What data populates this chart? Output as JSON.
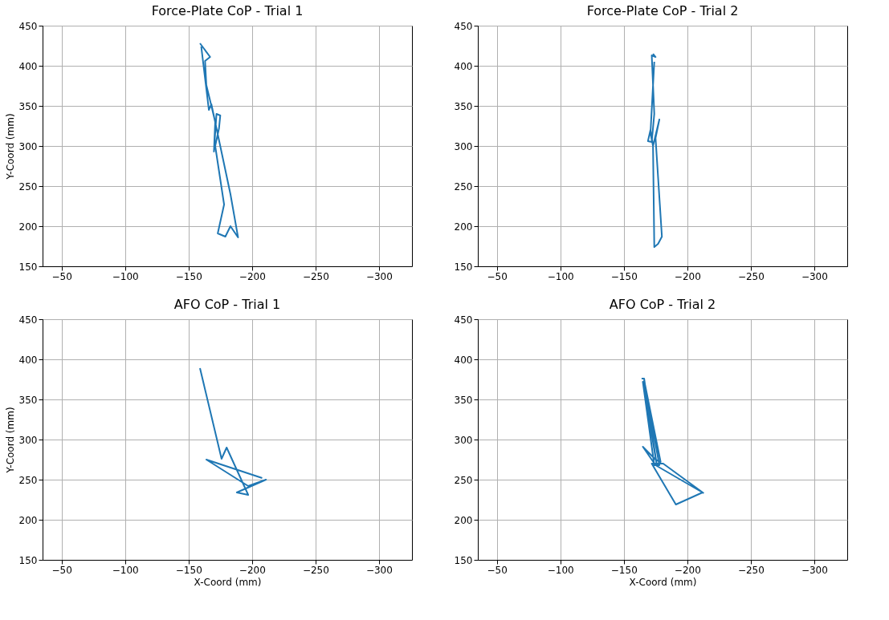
{
  "chart_data": [
    {
      "type": "line",
      "title": "Force-Plate CoP - Trial 1",
      "ylabel": "Y-Coord (mm)",
      "x": [
        -159,
        -167,
        -163,
        -164,
        -168,
        -171,
        -170,
        -172,
        -175,
        -174,
        -171,
        -178,
        -173,
        -179,
        -183,
        -189,
        -183,
        -168,
        -166,
        -160
      ],
      "values": [
        428,
        411,
        406,
        376,
        350,
        330,
        293,
        340,
        338,
        322,
        300,
        227,
        191,
        187,
        200,
        186,
        240,
        352,
        345,
        424
      ],
      "color": "#1f77b4",
      "xlim": [
        -35,
        -326
      ],
      "ylim": [
        150,
        450
      ],
      "xticks": [
        -50,
        -100,
        -150,
        -200,
        -250,
        -300
      ],
      "yticks": [
        150,
        200,
        250,
        300,
        350,
        400,
        450
      ],
      "grid": true
    },
    {
      "type": "line",
      "title": "Force-Plate CoP - Trial 2",
      "x": [
        -173,
        -175,
        -172,
        -174,
        -172,
        -169,
        -171,
        -173,
        -178,
        -175,
        -180,
        -177,
        -174,
        -173,
        -171,
        -174
      ],
      "values": [
        415,
        411,
        413,
        340,
        305,
        306,
        320,
        300,
        333,
        310,
        187,
        178,
        174,
        300,
        316,
        405
      ],
      "color": "#1f77b4",
      "xlim": [
        -35,
        -326
      ],
      "ylim": [
        150,
        450
      ],
      "xticks": [
        -50,
        -100,
        -150,
        -200,
        -250,
        -300
      ],
      "yticks": [
        150,
        200,
        250,
        300,
        350,
        400,
        450
      ],
      "grid": true
    },
    {
      "type": "line",
      "title": "AFO CoP - Trial 1",
      "xlabel": "X-Coord (mm)",
      "ylabel": "Y-Coord (mm)",
      "x": [
        -159,
        -176,
        -180,
        -197,
        -188,
        -211,
        -197,
        -164,
        -208
      ],
      "values": [
        389,
        276,
        290,
        231,
        234,
        250,
        242,
        275,
        252
      ],
      "color": "#1f77b4",
      "xlim": [
        -35,
        -326
      ],
      "ylim": [
        150,
        450
      ],
      "xticks": [
        -50,
        -100,
        -150,
        -200,
        -250,
        -300
      ],
      "yticks": [
        150,
        200,
        250,
        300,
        350,
        400,
        450
      ],
      "grid": true
    },
    {
      "type": "line",
      "title": "AFO CoP - Trial 2",
      "xlabel": "X-Coord (mm)",
      "x": [
        -164,
        -166,
        -176,
        -165,
        -174,
        -178,
        -166,
        -179,
        -175,
        -165,
        -175,
        -212,
        -191,
        -172,
        -181,
        -213
      ],
      "values": [
        376,
        376,
        268,
        372,
        268,
        268,
        374,
        272,
        275,
        291,
        268,
        234,
        219,
        270,
        270,
        233
      ],
      "color": "#1f77b4",
      "xlim": [
        -35,
        -326
      ],
      "ylim": [
        150,
        450
      ],
      "xticks": [
        -50,
        -100,
        -150,
        -200,
        -250,
        -300
      ],
      "yticks": [
        150,
        200,
        250,
        300,
        350,
        400,
        450
      ],
      "grid": true
    }
  ]
}
